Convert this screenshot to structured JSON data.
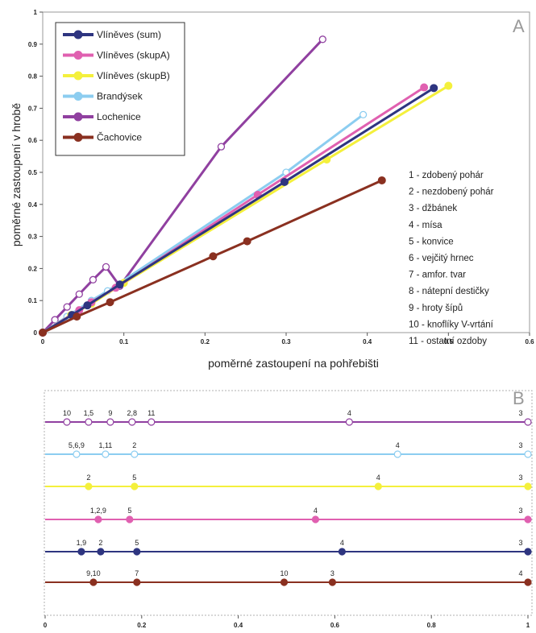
{
  "colors": {
    "Vlíněves (sum)": "#2e3580",
    "Vlíněves (skupA)": "#e060b0",
    "Vlíněves (skupB)": "#f4f03c",
    "Brandýsek": "#8ccdf0",
    "Lochenice": "#9040a0",
    "Čachovice": "#8a3020"
  },
  "chart_data": [
    {
      "type": "line",
      "panel": "A",
      "xlabel": "poměrné zastoupení na pohřebišti",
      "ylabel": "poměrné zastoupení v hrobě",
      "xlim": [
        0,
        0.6
      ],
      "ylim": [
        0,
        1
      ],
      "x_ticks": [
        "0",
        "0.1",
        "0.2",
        "0.3",
        "0.4",
        "0.5",
        "0.6"
      ],
      "y_ticks": [
        "0",
        "0.1",
        "0.2",
        "0.3",
        "0.4",
        "0.5",
        "0.6",
        "0.7",
        "0.8",
        "0.9",
        "1"
      ],
      "grid": false,
      "legend_position": "top-left",
      "series": [
        {
          "name": "Lochenice",
          "marker": "open",
          "points": [
            [
              0,
              0
            ],
            [
              0.015,
              0.04
            ],
            [
              0.03,
              0.08
            ],
            [
              0.045,
              0.12
            ],
            [
              0.062,
              0.165
            ],
            [
              0.078,
              0.205
            ],
            [
              0.095,
              0.145
            ],
            [
              0.22,
              0.58
            ],
            [
              0.345,
              0.915
            ]
          ]
        },
        {
          "name": "Brandýsek",
          "marker": "open",
          "points": [
            [
              0,
              0
            ],
            [
              0.03,
              0.05
            ],
            [
              0.06,
              0.1
            ],
            [
              0.08,
              0.13
            ],
            [
              0.3,
              0.5
            ],
            [
              0.395,
              0.68
            ]
          ]
        },
        {
          "name": "Vlíněves (skupB)",
          "marker": "filled",
          "points": [
            [
              0,
              0
            ],
            [
              0.035,
              0.055
            ],
            [
              0.06,
              0.09
            ],
            [
              0.1,
              0.155
            ],
            [
              0.35,
              0.54
            ],
            [
              0.5,
              0.77
            ]
          ]
        },
        {
          "name": "Vlíněves (skupA)",
          "marker": "filled",
          "points": [
            [
              0,
              0
            ],
            [
              0.045,
              0.07
            ],
            [
              0.06,
              0.095
            ],
            [
              0.09,
              0.14
            ],
            [
              0.265,
              0.43
            ],
            [
              0.47,
              0.765
            ]
          ]
        },
        {
          "name": "Vlíněves (sum)",
          "marker": "filled",
          "points": [
            [
              0,
              0
            ],
            [
              0.036,
              0.055
            ],
            [
              0.055,
              0.085
            ],
            [
              0.095,
              0.15
            ],
            [
              0.298,
              0.47
            ],
            [
              0.482,
              0.763
            ]
          ]
        },
        {
          "name": "Čachovice",
          "marker": "filled",
          "points": [
            [
              0,
              0
            ],
            [
              0.042,
              0.05
            ],
            [
              0.083,
              0.095
            ],
            [
              0.21,
              0.238
            ],
            [
              0.252,
              0.285
            ],
            [
              0.418,
              0.475
            ]
          ]
        }
      ],
      "categories": [
        "1 - zdobený pohár",
        "2 - nezdobený pohár",
        "3 - džbánek",
        "4 - mísa",
        "5 - konvice",
        "6 - vejčitý hrnec",
        "7 - amfor. tvar",
        "8 - nátepní destičky",
        "9 - hroty šípů",
        "10 - knoflíky V-vrtání",
        "11 - ostatní ozdoby"
      ]
    },
    {
      "type": "scatter",
      "panel": "B",
      "xlim": [
        0,
        1
      ],
      "x_ticks": [
        "0",
        "0.2",
        "0.4",
        "0.6",
        "0.8",
        "1"
      ],
      "rows": [
        {
          "name": "Lochenice",
          "marker": "open",
          "points": [
            {
              "x": 0.045,
              "label": "10"
            },
            {
              "x": 0.09,
              "label": "1,5"
            },
            {
              "x": 0.135,
              "label": "9"
            },
            {
              "x": 0.18,
              "label": "2,8"
            },
            {
              "x": 0.22,
              "label": "11"
            },
            {
              "x": 0.63,
              "label": "4"
            },
            {
              "x": 1.0,
              "label": "3"
            }
          ]
        },
        {
          "name": "Brandýsek",
          "marker": "open",
          "points": [
            {
              "x": 0.065,
              "label": "5,6,9"
            },
            {
              "x": 0.125,
              "label": "1,11"
            },
            {
              "x": 0.185,
              "label": "2"
            },
            {
              "x": 0.73,
              "label": "4"
            },
            {
              "x": 1.0,
              "label": "3"
            }
          ]
        },
        {
          "name": "Vlíněves (skupB)",
          "marker": "filled",
          "points": [
            {
              "x": 0.09,
              "label": "2"
            },
            {
              "x": 0.185,
              "label": "5"
            },
            {
              "x": 0.69,
              "label": "4"
            },
            {
              "x": 1.0,
              "label": "3"
            }
          ]
        },
        {
          "name": "Vlíněves (skupA)",
          "marker": "filled",
          "points": [
            {
              "x": 0.11,
              "label": "1,2,9"
            },
            {
              "x": 0.175,
              "label": "5"
            },
            {
              "x": 0.56,
              "label": "4"
            },
            {
              "x": 1.0,
              "label": "3"
            }
          ]
        },
        {
          "name": "Vlíněves (sum)",
          "marker": "filled",
          "points": [
            {
              "x": 0.075,
              "label": "1,9"
            },
            {
              "x": 0.115,
              "label": "2"
            },
            {
              "x": 0.19,
              "label": "5"
            },
            {
              "x": 0.615,
              "label": "4"
            },
            {
              "x": 1.0,
              "label": "3"
            }
          ]
        },
        {
          "name": "Čachovice",
          "marker": "filled",
          "points": [
            {
              "x": 0.1,
              "label": "9,10"
            },
            {
              "x": 0.19,
              "label": "7"
            },
            {
              "x": 0.495,
              "label": "10"
            },
            {
              "x": 0.595,
              "label": "3"
            },
            {
              "x": 1.0,
              "label": "4"
            }
          ]
        }
      ]
    }
  ],
  "legend": [
    {
      "label": "Vlíněves (sum)"
    },
    {
      "label": "Vlíněves (skupA)"
    },
    {
      "label": "Vlíněves (skupB)"
    },
    {
      "label": "Brandýsek"
    },
    {
      "label": "Lochenice"
    },
    {
      "label": "Čachovice"
    }
  ],
  "panel_labels": {
    "a": "A",
    "b": "B"
  }
}
